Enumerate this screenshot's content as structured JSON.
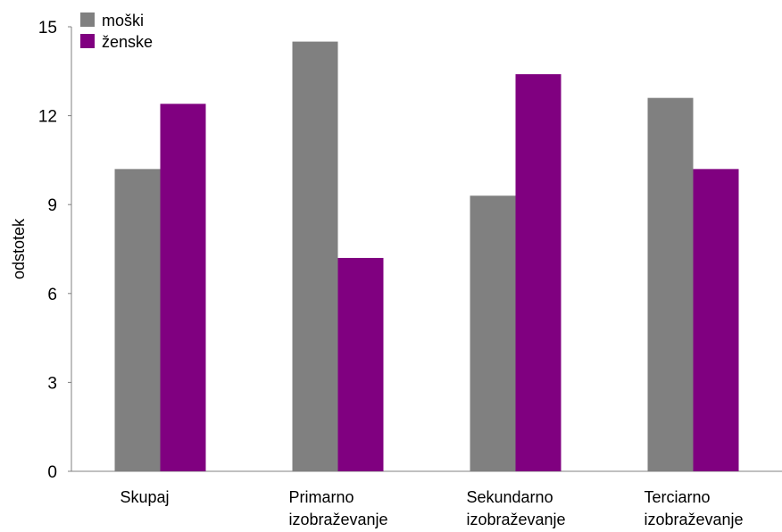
{
  "chart_data": {
    "type": "bar",
    "title": "",
    "xlabel": "",
    "ylabel": "odstotek",
    "ylim": [
      0,
      15
    ],
    "yticks": [
      0,
      3,
      6,
      9,
      12,
      15
    ],
    "grid": false,
    "legend_position": "top-left",
    "categories": [
      [
        "Skupaj"
      ],
      [
        "Primarno",
        "izobraževanje"
      ],
      [
        "Sekundarno",
        "izobraževanje"
      ],
      [
        "Terciarno",
        "izobraževanje"
      ]
    ],
    "series": [
      {
        "name": "moški",
        "color": "#808080",
        "values": [
          10.2,
          14.5,
          9.3,
          12.6
        ]
      },
      {
        "name": "ženske",
        "color": "#800080",
        "values": [
          12.4,
          7.2,
          13.4,
          10.2
        ]
      }
    ]
  }
}
